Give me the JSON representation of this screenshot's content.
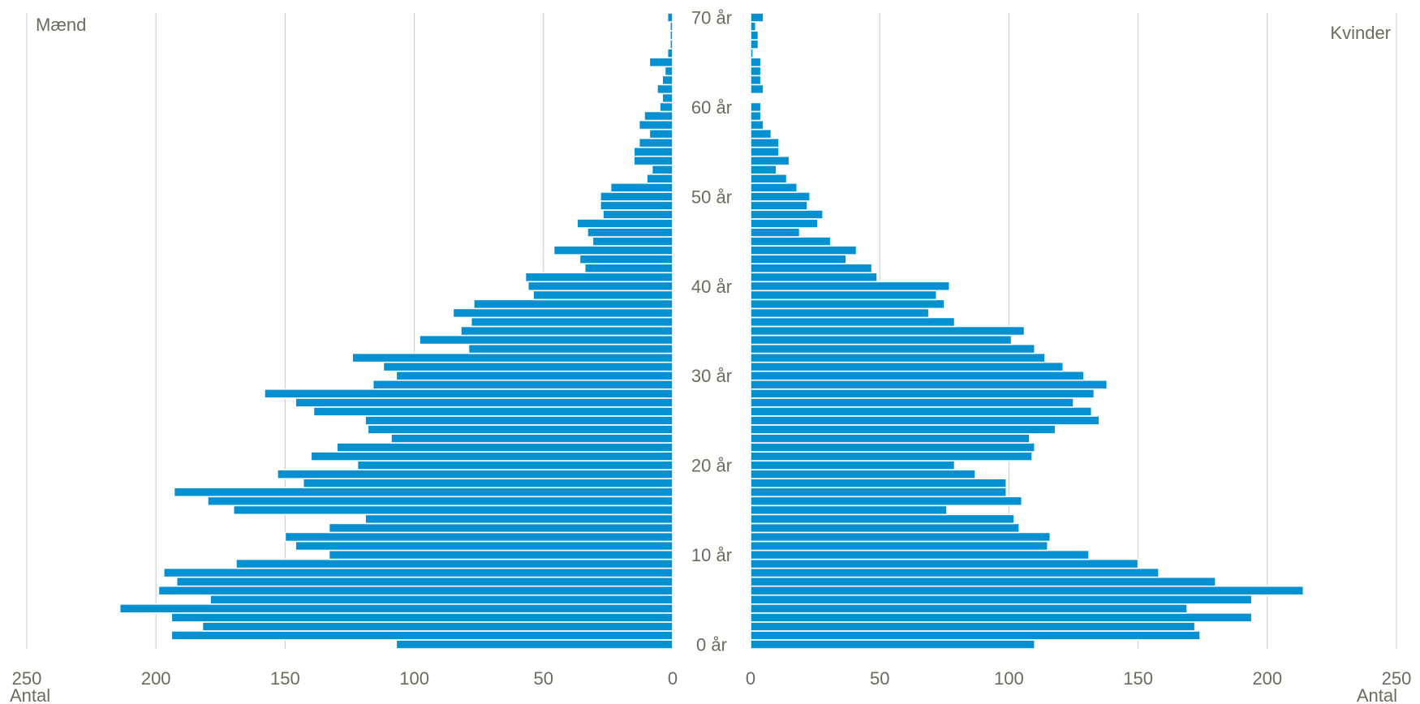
{
  "chart_data": {
    "type": "bar",
    "subtype": "population-pyramid",
    "orientation": "horizontal",
    "title": "",
    "left_panel_label": "Mænd",
    "right_panel_label": "Kvinder",
    "x_axis_unit_left": "Antal",
    "x_axis_unit_right": "Antal",
    "xlim": [
      0,
      250
    ],
    "x_ticks": [
      "250",
      "200",
      "150",
      "100",
      "50",
      "0"
    ],
    "x_ticks_right": [
      "0",
      "50",
      "100",
      "150",
      "200",
      "250"
    ],
    "age_labels": [
      "0 år",
      "10 år",
      "20 år",
      "30 år",
      "40 år",
      "50 år",
      "60 år",
      "70 år"
    ],
    "grid": true,
    "bar_color": "#0591d1",
    "ages": [
      0,
      1,
      2,
      3,
      4,
      5,
      6,
      7,
      8,
      9,
      10,
      11,
      12,
      13,
      14,
      15,
      16,
      17,
      18,
      19,
      20,
      21,
      22,
      23,
      24,
      25,
      26,
      27,
      28,
      29,
      30,
      31,
      32,
      33,
      34,
      35,
      36,
      37,
      38,
      39,
      40,
      41,
      42,
      43,
      44,
      45,
      46,
      47,
      48,
      49,
      50,
      51,
      52,
      53,
      54,
      55,
      56,
      57,
      58,
      59,
      60,
      61,
      62,
      63,
      64,
      65,
      66,
      67,
      68,
      69,
      70
    ],
    "series": [
      {
        "name": "Mænd",
        "values": [
          107,
          194,
          182,
          194,
          214,
          179,
          199,
          192,
          197,
          169,
          133,
          146,
          150,
          133,
          119,
          170,
          180,
          193,
          143,
          153,
          122,
          140,
          130,
          109,
          118,
          119,
          139,
          146,
          158,
          116,
          107,
          112,
          124,
          79,
          98,
          82,
          78,
          85,
          77,
          54,
          56,
          57,
          34,
          36,
          46,
          31,
          33,
          37,
          27,
          28,
          28,
          24,
          10,
          8,
          15,
          15,
          13,
          9,
          13,
          11,
          5,
          4,
          6,
          4,
          3,
          9,
          2,
          1,
          1,
          1,
          2
        ]
      },
      {
        "name": "Kvinder",
        "values": [
          110,
          174,
          172,
          194,
          169,
          194,
          214,
          180,
          158,
          150,
          131,
          115,
          116,
          104,
          102,
          76,
          105,
          99,
          99,
          87,
          79,
          109,
          110,
          108,
          118,
          135,
          132,
          125,
          133,
          138,
          129,
          121,
          114,
          110,
          101,
          106,
          79,
          69,
          75,
          72,
          77,
          49,
          47,
          37,
          41,
          31,
          19,
          26,
          28,
          22,
          23,
          18,
          14,
          10,
          15,
          11,
          11,
          8,
          5,
          4,
          4,
          0,
          5,
          4,
          4,
          4,
          1,
          3,
          3,
          2,
          5
        ]
      }
    ]
  }
}
